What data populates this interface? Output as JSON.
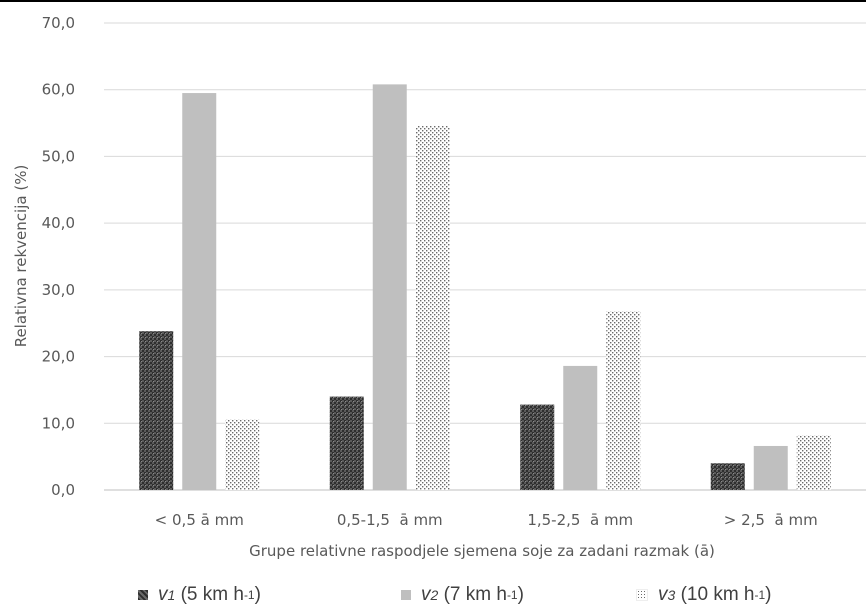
{
  "chart_data": {
    "type": "bar",
    "title": "",
    "xlabel": "Grupe relativne raspodjele sjemena soje za zadani razmak (ā)",
    "ylabel": "Relativna rekvencija (%)",
    "ylim": [
      0,
      70
    ],
    "yticks": [
      "0,0",
      "10,0",
      "20,0",
      "30,0",
      "40,0",
      "50,0",
      "60,0",
      "70,0"
    ],
    "grid": true,
    "legend_position": "bottom",
    "categories": [
      "< 0,5 ā mm",
      "0,5-1,5  ā mm",
      "1,5-2,5  ā mm",
      "> 2,5  ā mm"
    ],
    "series": [
      {
        "name": "v1 (5 km h-1)",
        "symbol": "v",
        "index": "1",
        "unit": "(5 km h",
        "exp": "-1",
        "close": ")",
        "pattern": "dense-dots",
        "color": "#3a3a3a",
        "values": [
          23.8,
          14.0,
          12.8,
          4.0
        ]
      },
      {
        "name": "v2 (7 km h-1)",
        "symbol": "v",
        "index": "2",
        "unit": "(7 km h",
        "exp": "-1",
        "close": ")",
        "pattern": "solid",
        "color": "#bfbfbf",
        "values": [
          59.5,
          60.8,
          18.6,
          6.6
        ]
      },
      {
        "name": "v3 (10 km h-1)",
        "symbol": "v",
        "index": "3",
        "unit": "(10 km h",
        "exp": "-1",
        "close": ")",
        "pattern": "sparse-dots",
        "color": "#9a9a9a",
        "values": [
          10.6,
          54.6,
          26.8,
          8.2
        ]
      }
    ]
  }
}
